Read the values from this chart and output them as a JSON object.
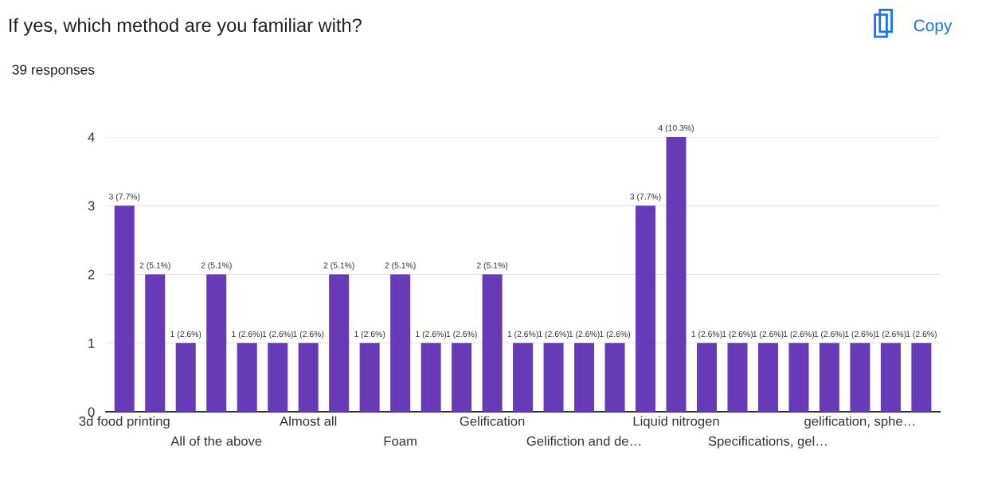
{
  "chart_data": {
    "type": "bar",
    "title": "If yes, which method are you familiar with?",
    "subtitle": "39 responses",
    "categories": [
      "3d food printing",
      null,
      null,
      "All of the above",
      null,
      null,
      "Almost all",
      null,
      null,
      "Foam",
      null,
      null,
      "Gelification",
      null,
      null,
      "Gelifiction and de…",
      null,
      null,
      "Liquid nitrogen",
      null,
      null,
      "Specifications, gel…",
      null,
      null,
      "gelification, sphe…",
      null,
      null
    ],
    "values": [
      3,
      2,
      1,
      2,
      1,
      1,
      1,
      2,
      1,
      2,
      1,
      1,
      2,
      1,
      1,
      1,
      1,
      3,
      4,
      1,
      1,
      1,
      1,
      1,
      1,
      1,
      1
    ],
    "value_labels": [
      "3 (7.7%)",
      "2 (5.1%)",
      "1 (2.6%)",
      "2 (5.1%)",
      "1 (2.6%)",
      "1 (2.6%)",
      "1 (2.6%)",
      "2 (5.1%)",
      "1 (2.6%)",
      "2 (5.1%)",
      "1 (2.6%)",
      "1 (2.6%)",
      "2 (5.1%)",
      "1 (2.6%)",
      "1 (2.6%)",
      "1 (2.6%)",
      "1 (2.6%)",
      "3 (7.7%)",
      "4 (10.3%)",
      "1 (2.6%)",
      "1 (2.6%)",
      "1 (2.6%)",
      "1 (2.6%)",
      "1 (2.6%)",
      "1 (2.6%)",
      "1 (2.6%)",
      "1 (2.6%)"
    ],
    "color": "#673ab7",
    "ylim": [
      0,
      4
    ],
    "yticks": [
      0,
      1,
      2,
      3,
      4
    ],
    "grid": "y",
    "annotations": [
      "Copy"
    ]
  }
}
